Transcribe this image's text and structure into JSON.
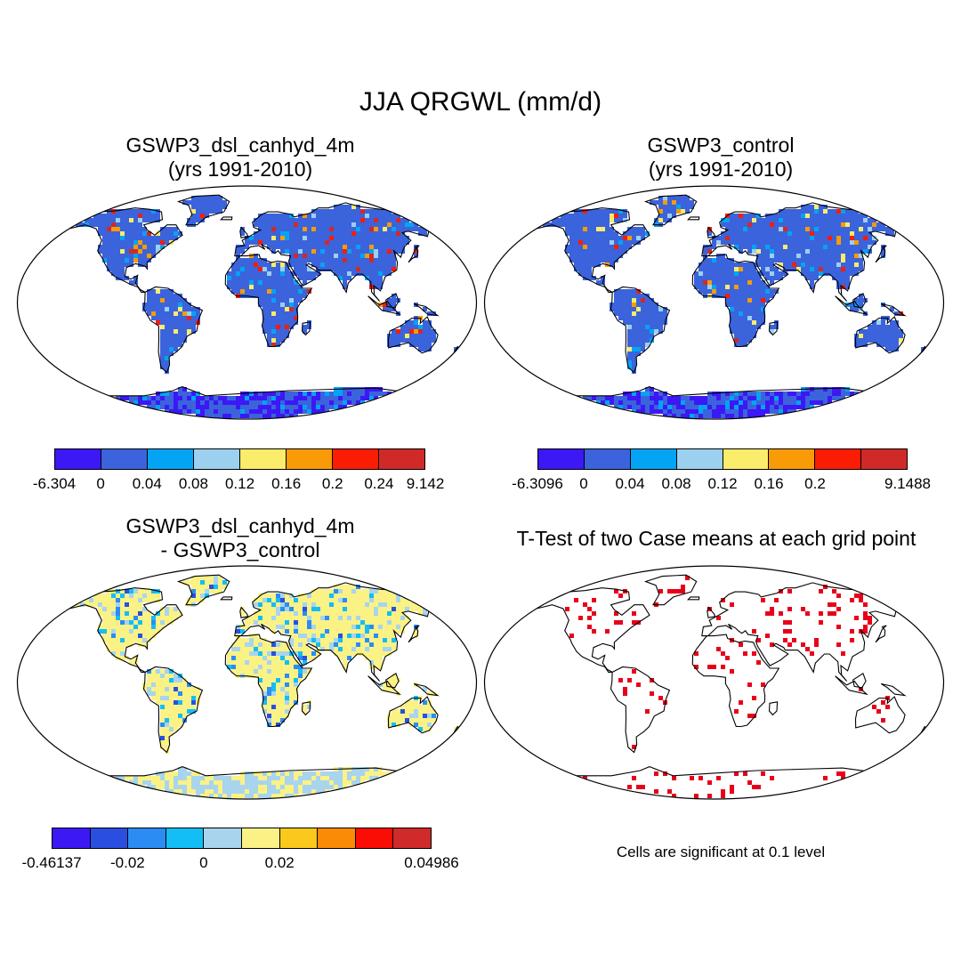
{
  "figure": {
    "title": "JJA QRGWL (mm/d)",
    "colors": {
      "ocean": "#ffffff",
      "coast": "#000000",
      "land_base": "#3b63dc",
      "sig": "#e8001a"
    }
  },
  "panels": [
    {
      "title_line1": "GSWP3_dsl_canhyd_4m",
      "title_line2": "(yrs 1991-2010)",
      "type": "absolute"
    },
    {
      "title_line1": "GSWP3_control",
      "title_line2": "(yrs 1991-2010)",
      "type": "absolute"
    },
    {
      "title_line1": "GSWP3_dsl_canhyd_4m",
      "title_line2": "- GSWP3_control",
      "type": "difference"
    },
    {
      "title_line1": "T-Test of two Case means at each grid point",
      "title_line2": "",
      "type": "significance"
    }
  ],
  "colorbars": {
    "cbar1": {
      "colors": [
        "#3c18f5",
        "#3b63dc",
        "#04a4f4",
        "#9bd0ef",
        "#fbec6b",
        "#f99b06",
        "#fb1c04",
        "#d02a28"
      ],
      "labels": [
        "-6.304",
        "0",
        "0.04",
        "0.08",
        "0.12",
        "0.16",
        "0.2",
        "0.24",
        "9.142"
      ]
    },
    "cbar2": {
      "colors": [
        "#3c18f5",
        "#3b63dc",
        "#04a4f4",
        "#9bd0ef",
        "#fbec6b",
        "#f99b06",
        "#fb1c04",
        "#d02a28"
      ],
      "labels": [
        "-6.3096",
        "0",
        "0.04",
        "0.08",
        "0.12",
        "0.16",
        "0.2",
        "",
        "9.1488"
      ]
    },
    "cbar3": {
      "colors": [
        "#3c18f5",
        "#2a4fe0",
        "#2b8cf4",
        "#13bdf6",
        "#a8d4ee",
        "#fbf285",
        "#fbc91c",
        "#fb8b04",
        "#fb0c04",
        "#d02a2a"
      ],
      "labels": [
        "-0.46137",
        "",
        "-0.02",
        "",
        "0",
        "",
        "0.02",
        "",
        "",
        "",
        "0.04986"
      ]
    }
  },
  "significance_note": "Cells are significant at 0.1 level"
}
